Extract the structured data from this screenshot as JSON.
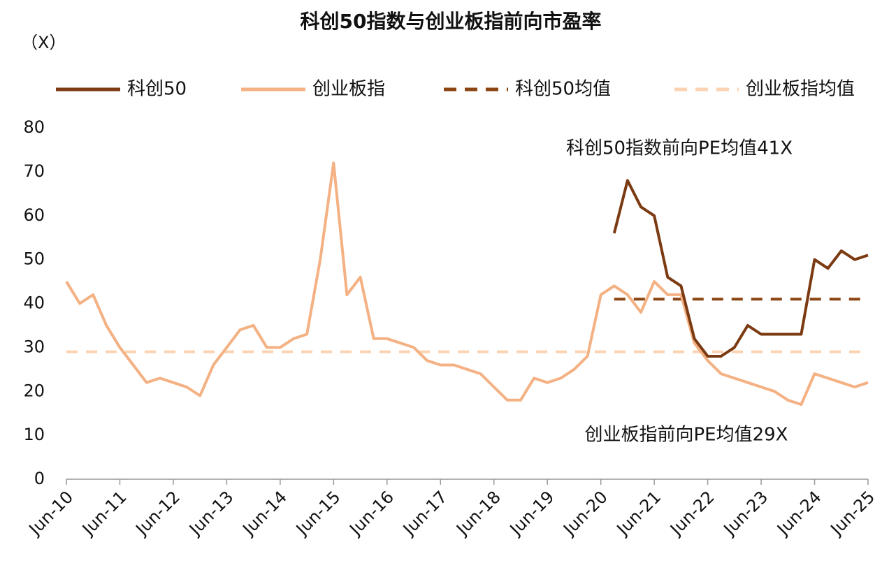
{
  "chart_data": {
    "type": "line",
    "title": "科创50指数与创业板指前向市盈率",
    "y_unit": "（X）",
    "categories": [
      "Jun-10",
      null,
      null,
      null,
      "Jun-11",
      null,
      null,
      null,
      "Jun-12",
      null,
      null,
      null,
      "Jun-13",
      null,
      null,
      null,
      "Jun-14",
      null,
      null,
      null,
      "Jun-15",
      null,
      null,
      null,
      "Jun-16",
      null,
      null,
      null,
      "Jun-17",
      null,
      null,
      null,
      "Jun-18",
      null,
      null,
      null,
      "Jun-19",
      null,
      null,
      null,
      "Jun-20",
      null,
      null,
      null,
      "Jun-21",
      null,
      null,
      null,
      "Jun-22",
      null,
      null,
      null,
      "Jun-23",
      null,
      null,
      null,
      "Jun-24",
      null,
      null,
      null,
      "Jun-25"
    ],
    "series": [
      {
        "name": "科创50",
        "color": "#7b3a12",
        "mean_name": "科创50均值",
        "mean": 41,
        "mean_color": "#8b4513",
        "values": [
          null,
          null,
          null,
          null,
          null,
          null,
          null,
          null,
          null,
          null,
          null,
          null,
          null,
          null,
          null,
          null,
          null,
          null,
          null,
          null,
          null,
          null,
          null,
          null,
          null,
          null,
          null,
          null,
          null,
          null,
          null,
          null,
          null,
          null,
          null,
          null,
          null,
          null,
          null,
          null,
          null,
          56,
          68,
          62,
          60,
          46,
          44,
          32,
          28,
          28,
          30,
          35,
          33,
          33,
          33,
          33,
          50,
          48,
          52,
          50,
          51
        ]
      },
      {
        "name": "创业板指",
        "color": "#f4b183",
        "mean_name": "创业板指均值",
        "mean": 29,
        "mean_color": "#fbd3b3",
        "values": [
          45,
          40,
          42,
          35,
          30,
          26,
          22,
          23,
          22,
          21,
          19,
          26,
          30,
          34,
          35,
          30,
          30,
          32,
          33,
          50,
          72,
          42,
          46,
          32,
          32,
          31,
          30,
          27,
          26,
          26,
          25,
          24,
          21,
          18,
          18,
          23,
          22,
          23,
          25,
          28,
          42,
          44,
          42,
          38,
          45,
          42,
          42,
          31,
          27,
          24,
          23,
          22,
          21,
          20,
          18,
          17,
          24,
          23,
          22,
          21,
          22
        ]
      }
    ],
    "ylim": [
      0,
      80
    ],
    "yticks": [
      0,
      10,
      20,
      30,
      40,
      50,
      60,
      70,
      80
    ],
    "grid": false,
    "annotations": [
      "科创50指数前向PE均值41X",
      "创业板指前向PE均值29X"
    ]
  }
}
